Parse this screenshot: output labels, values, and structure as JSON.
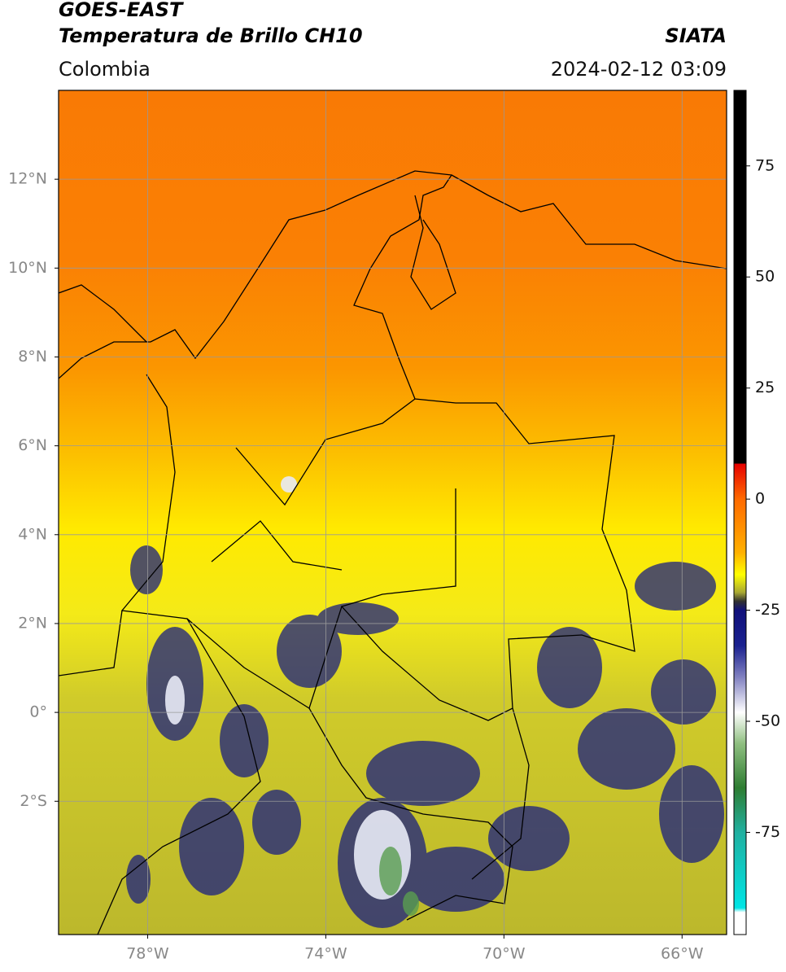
{
  "header": {
    "title": "GOES-EAST",
    "subtitle": "Temperatura de Brillo CH10",
    "source": "SIATA",
    "region": "Colombia",
    "timestamp": "2024-02-12 03:09"
  },
  "chart_data": {
    "type": "map",
    "xlim": [
      -80,
      -65
    ],
    "ylim": [
      -5,
      14
    ],
    "xticks": [
      {
        "value": -78,
        "label": "78°W"
      },
      {
        "value": -74,
        "label": "74°W"
      },
      {
        "value": -70,
        "label": "70°W"
      },
      {
        "value": -66,
        "label": "66°W"
      }
    ],
    "yticks": [
      {
        "value": 12,
        "label": "12°N"
      },
      {
        "value": 10,
        "label": "10°N"
      },
      {
        "value": 8,
        "label": "8°N"
      },
      {
        "value": 6,
        "label": "6°N"
      },
      {
        "value": 4,
        "label": "4°N"
      },
      {
        "value": 2,
        "label": "2°N"
      },
      {
        "value": 0,
        "label": "0°"
      },
      {
        "value": -2,
        "label": "2°S"
      }
    ],
    "grid": true,
    "colorbar": {
      "lim": [
        -98,
        92
      ],
      "ticks": [
        -75,
        -50,
        -25,
        0,
        25,
        50,
        75
      ],
      "stops": [
        {
          "value": 92,
          "color": "#000000"
        },
        {
          "value": 8,
          "color": "#000000"
        },
        {
          "value": 8,
          "color": "#e60000"
        },
        {
          "value": 0,
          "color": "#ff6a00"
        },
        {
          "value": -12,
          "color": "#ffb000"
        },
        {
          "value": -17,
          "color": "#ffff00"
        },
        {
          "value": -21,
          "color": "#a8a832"
        },
        {
          "value": -23,
          "color": "#303030"
        },
        {
          "value": -25,
          "color": "#10107a"
        },
        {
          "value": -33,
          "color": "#1b2290"
        },
        {
          "value": -40,
          "color": "#8080c0"
        },
        {
          "value": -48,
          "color": "#ffffff"
        },
        {
          "value": -55,
          "color": "#8fbf80"
        },
        {
          "value": -65,
          "color": "#2e7d32"
        },
        {
          "value": -75,
          "color": "#20b0a0"
        },
        {
          "value": -92,
          "color": "#00e5e5"
        },
        {
          "value": -93,
          "color": "#ffffff"
        },
        {
          "value": -98,
          "color": "#ffffff"
        }
      ]
    }
  }
}
